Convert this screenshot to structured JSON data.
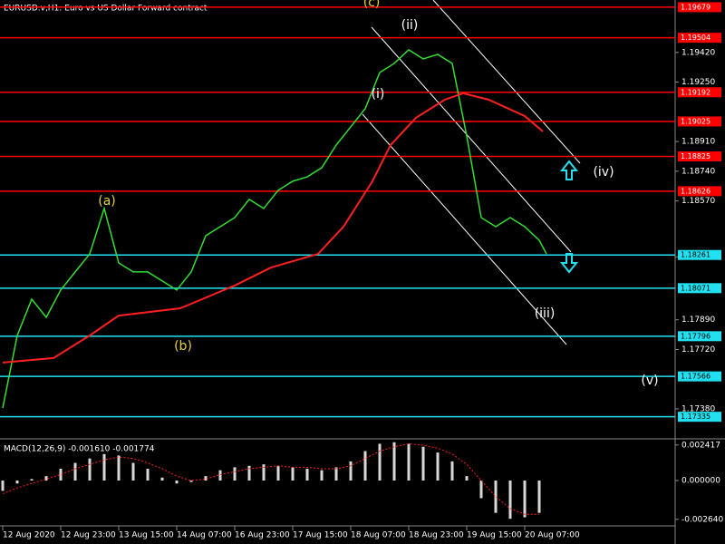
{
  "chart_data": {
    "type": "line",
    "title": "EURUSD.v,H1:  Euro vs US Dollar Forward contract",
    "xlim": [
      -0.75,
      185.5
    ],
    "ylim": [
      1.17214,
      1.1972
    ],
    "xticks": [
      {
        "value": 0,
        "label": "12 Aug 2020"
      },
      {
        "value": 16,
        "label": "12 Aug 23:00"
      },
      {
        "value": 32,
        "label": "13 Aug 15:00"
      },
      {
        "value": 48,
        "label": "14 Aug 07:00"
      },
      {
        "value": 64,
        "label": "16 Aug 23:00"
      },
      {
        "value": 80,
        "label": "17 Aug 15:00"
      },
      {
        "value": 96,
        "label": "18 Aug 07:00"
      },
      {
        "value": 112,
        "label": "18 Aug 23:00"
      },
      {
        "value": 128,
        "label": "19 Aug 15:00"
      },
      {
        "value": 144,
        "label": "20 Aug 07:00"
      }
    ],
    "yticks": [
      {
        "value": 1.1942,
        "label": "1.19420"
      },
      {
        "value": 1.1925,
        "label": "1.19250"
      },
      {
        "value": 1.1891,
        "label": "1.18910"
      },
      {
        "value": 1.1874,
        "label": "1.18740"
      },
      {
        "value": 1.1857,
        "label": "1.18570"
      },
      {
        "value": 1.1825,
        "label": "1.18250"
      },
      {
        "value": 1.1789,
        "label": "1.17890"
      },
      {
        "value": 1.1772,
        "label": "1.17720"
      },
      {
        "value": 1.1738,
        "label": "1.17380"
      }
    ],
    "series": [
      {
        "color": "#33dd33",
        "x": [
          0,
          4,
          8,
          12,
          16,
          20,
          24,
          28,
          32,
          36,
          40,
          44,
          48,
          52,
          56,
          60,
          64,
          68,
          72,
          76,
          80,
          84,
          88,
          92,
          96,
          100,
          104,
          108,
          112,
          116,
          120,
          124,
          128,
          132,
          136,
          140,
          144,
          148,
          150
        ],
        "values": [
          1.17385,
          1.178,
          1.18008,
          1.17904,
          1.1806,
          1.18164,
          1.18267,
          1.18527,
          1.18215,
          1.18164,
          1.18164,
          1.18112,
          1.1806,
          1.18164,
          1.18371,
          1.18423,
          1.18475,
          1.18579,
          1.18527,
          1.18631,
          1.18683,
          1.18708,
          1.1876,
          1.1889,
          1.18994,
          1.19098,
          1.19305,
          1.19357,
          1.19435,
          1.19383,
          1.19409,
          1.19357,
          1.18942,
          1.18475,
          1.18423,
          1.18475,
          1.18423,
          1.18345,
          1.18267
        ]
      },
      {
        "color": "#ff2020",
        "x": [
          0,
          14,
          24,
          32,
          49,
          64,
          74,
          87,
          94,
          102,
          107,
          114,
          122,
          127,
          134,
          144,
          149
        ],
        "values": [
          1.17645,
          1.17671,
          1.178,
          1.17914,
          1.17956,
          1.18086,
          1.18189,
          1.18267,
          1.18423,
          1.18683,
          1.1889,
          1.19046,
          1.1915,
          1.19186,
          1.1915,
          1.19056,
          1.18968
        ]
      }
    ],
    "levels": [
      {
        "color": "#ff0000",
        "values": [
          1.19679,
          1.19504,
          1.19192,
          1.19025,
          1.18825,
          1.18626
        ]
      },
      {
        "color": "#22e0f0",
        "values": [
          1.18261,
          1.18071,
          1.17796,
          1.17566,
          1.17335
        ]
      }
    ],
    "annotations": [
      {
        "text": "(a)",
        "color": "#e6d23c"
      },
      {
        "text": "(b)",
        "color": "#e6d23c"
      },
      {
        "text": "(c)",
        "color": "#e6d23c"
      },
      {
        "text": "(i)",
        "color": "#ffffff"
      },
      {
        "text": "(ii)",
        "color": "#ffffff"
      },
      {
        "text": "(iii)",
        "color": "#ffffff"
      },
      {
        "text": "(iv)",
        "color": "#ffffff"
      },
      {
        "text": "(v)",
        "color": "#ffffff"
      }
    ],
    "macd": {
      "label": "MACD(12,26,9) -0.001610 -0.001774",
      "ylim": [
        -0.00413,
        0.00265
      ],
      "yticks": [
        0.002417,
        {
          "value": 0,
          "label": "0.000000"
        },
        {
          "value": -0.00264,
          "label": "-0.002640"
        }
      ],
      "x": [
        0,
        4,
        8,
        12,
        16,
        20,
        24,
        28,
        32,
        36,
        40,
        44,
        48,
        52,
        56,
        60,
        64,
        68,
        72,
        76,
        80,
        84,
        88,
        92,
        96,
        100,
        104,
        108,
        112,
        116,
        120,
        124,
        128,
        132,
        136,
        140,
        144,
        148
      ],
      "histogram": [
        -0.0007,
        -0.0002,
        0.0001,
        0.0003,
        0.0008,
        0.0012,
        0.0015,
        0.0018,
        0.0017,
        0.0012,
        0.0008,
        0.0002,
        -0.0002,
        -0.0001,
        0.0003,
        0.0007,
        0.0009,
        0.001,
        0.0011,
        0.001,
        0.0009,
        0.0008,
        0.0007,
        0.0009,
        0.0013,
        0.002,
        0.0025,
        0.0026,
        0.0025,
        0.0023,
        0.0019,
        0.0013,
        0.0003,
        -0.0012,
        -0.0022,
        -0.0026,
        -0.0025,
        -0.0022
      ],
      "signal": [
        -0.0009,
        -0.0005,
        -0.0002,
        0.0001,
        0.0004,
        0.0008,
        0.0011,
        0.0014,
        0.0016,
        0.0015,
        0.0012,
        0.0008,
        0.0003,
        0.0,
        0.0001,
        0.0004,
        0.0006,
        0.0008,
        0.0009,
        0.001,
        0.0009,
        0.0009,
        0.0008,
        0.0008,
        0.001,
        0.0015,
        0.002,
        0.0023,
        0.0025,
        0.0024,
        0.0022,
        0.0018,
        0.0011,
        0.0,
        -0.0011,
        -0.0019,
        -0.0023,
        -0.0023
      ],
      "hist_color": "#d8d8d8",
      "signal_color": "#ff2020"
    }
  }
}
